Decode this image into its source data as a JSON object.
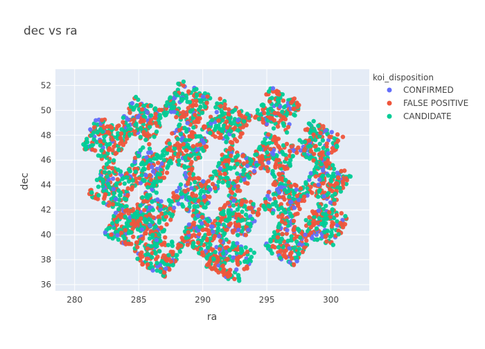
{
  "chart_data": {
    "type": "scatter",
    "title": "dec vs ra",
    "xlabel": "ra",
    "ylabel": "dec",
    "xlim": [
      278.5,
      303
    ],
    "ylim": [
      35.5,
      53.3
    ],
    "xticks": [
      280,
      285,
      290,
      295,
      300
    ],
    "yticks": [
      36,
      38,
      40,
      42,
      44,
      46,
      48,
      50,
      52
    ],
    "grid": true,
    "legend": {
      "title": "koi_disposition",
      "placement": "top-right-outside"
    },
    "series": [
      {
        "name": "CONFIRMED",
        "color": "#636efa"
      },
      {
        "name": "FALSE POSITIVE",
        "color": "#EF553B"
      },
      {
        "name": "CANDIDATE",
        "color": "#00cc96"
      }
    ],
    "tile_centers": [
      [
        288.8,
        50.5
      ],
      [
        295.9,
        50.0
      ],
      [
        285.3,
        49.2
      ],
      [
        291.9,
        49.0
      ],
      [
        282.4,
        47.6
      ],
      [
        299.0,
        47.3
      ],
      [
        288.6,
        47.0
      ],
      [
        295.6,
        46.3
      ],
      [
        285.8,
        45.3
      ],
      [
        292.5,
        45.2
      ],
      [
        283.0,
        43.8
      ],
      [
        299.7,
        44.3
      ],
      [
        289.3,
        43.3
      ],
      [
        296.4,
        42.8
      ],
      [
        286.0,
        41.5
      ],
      [
        292.7,
        41.6
      ],
      [
        284.2,
        40.6
      ],
      [
        299.5,
        40.8
      ],
      [
        290.0,
        39.9
      ],
      [
        296.6,
        39.4
      ],
      [
        286.6,
        38.5
      ],
      [
        292.2,
        38.0
      ]
    ]
  }
}
